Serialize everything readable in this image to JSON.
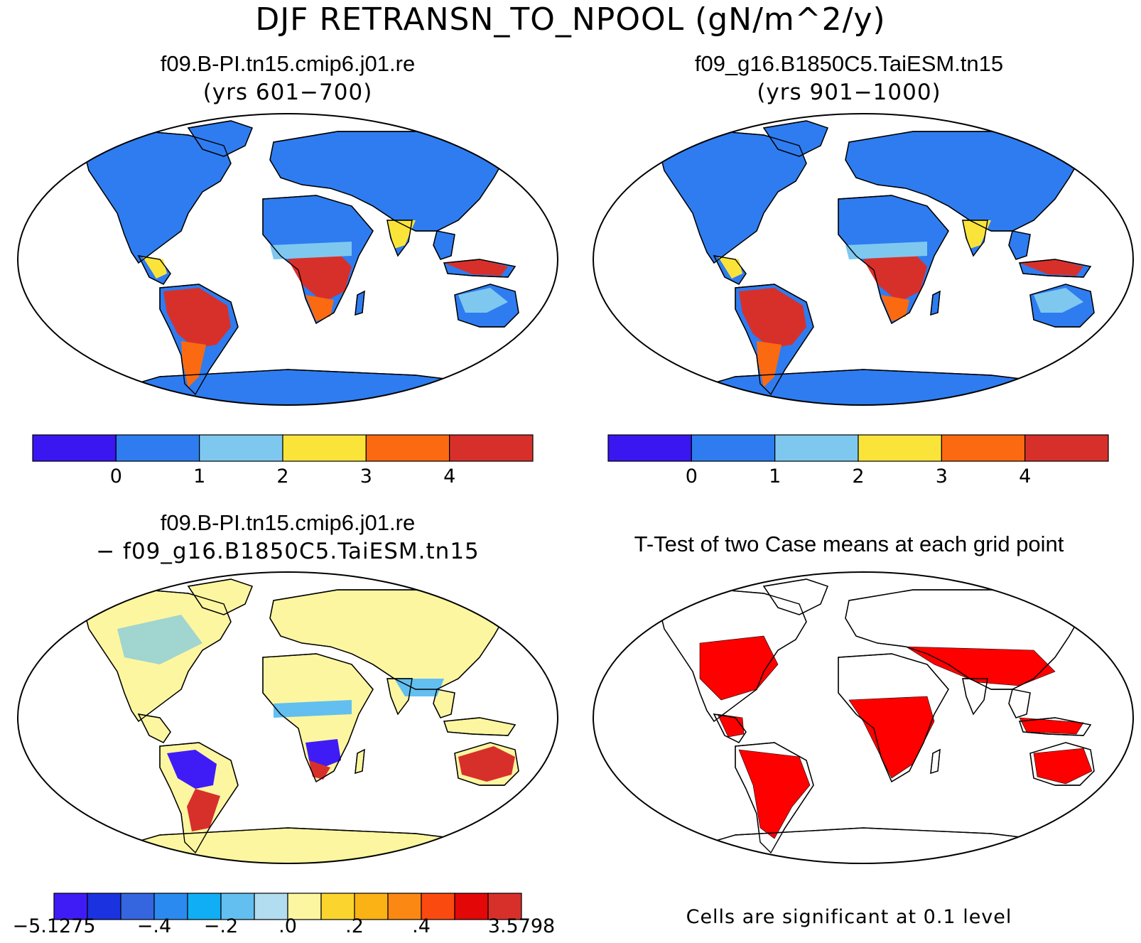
{
  "main_title": "DJF RETRANSN_TO_NPOOL (gN/m^2/y)",
  "panels": {
    "top_left": {
      "title": "f09.B-PI.tn15.cmip6.j01.re",
      "subtitle": "(yrs 601−700)"
    },
    "top_right": {
      "title": "f09_g16.B1850C5.TaiESM.tn15",
      "subtitle": "(yrs 901−1000)"
    },
    "bottom_left": {
      "title": "f09.B-PI.tn15.cmip6.j01.re",
      "subtitle": "− f09_g16.B1850C5.TaiESM.tn15"
    },
    "bottom_right": {
      "title": "T-Test of two Case means at each grid point",
      "note": "Cells are significant at 0.1 level"
    }
  },
  "colorbars": {
    "case": {
      "colors": [
        "#3a16f0",
        "#2e7cf0",
        "#7ec8f0",
        "#fbe43a",
        "#fb6a10",
        "#d7302b"
      ],
      "ticks": [
        "0",
        "1",
        "2",
        "3",
        "4"
      ]
    },
    "diff": {
      "colors": [
        "#3f1cf5",
        "#1a32e0",
        "#3566e0",
        "#2a8af0",
        "#10aef5",
        "#62bff0",
        "#b2dcf0",
        "#fdf6a0",
        "#fbd52e",
        "#fbb214",
        "#fb8812",
        "#fb4a10",
        "#e30707",
        "#d7302b"
      ],
      "ticks": [
        "−5.1275",
        "−.4",
        "−.2",
        ".0",
        ".2",
        ".4",
        "3.5798"
      ]
    }
  },
  "map_colors": {
    "ocean": "#ffffff",
    "case_land_base": "#2e7cf0",
    "case_light": "#7ec8f0",
    "case_yellow": "#fbe43a",
    "case_orange": "#fb6a10",
    "case_red": "#d7302b",
    "diff_land_base": "#fdf6a0",
    "diff_blue": "#62bff0",
    "diff_dark_blue": "#3f1cf5",
    "diff_red": "#d7302b",
    "sig_red": "#ff0000"
  }
}
